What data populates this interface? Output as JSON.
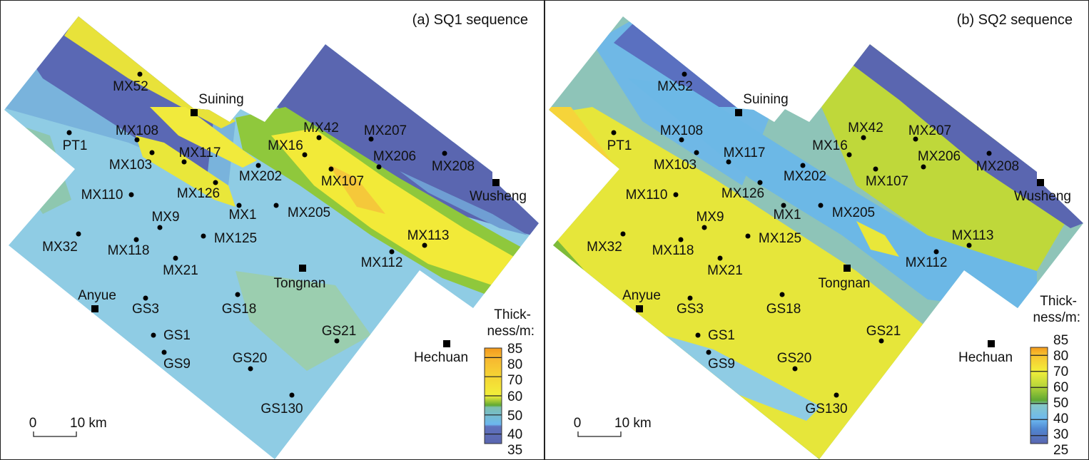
{
  "panels": [
    {
      "title": "(a) SQ1 sequence",
      "legend": {
        "title_line1": "Thick-",
        "title_line2": "ness/m:",
        "ticks": [
          "85",
          "80",
          "70",
          "60",
          "50",
          "40",
          "35"
        ]
      },
      "scale_bar": {
        "start": "0",
        "end": "10 km"
      }
    },
    {
      "title": "(b) SQ2 sequence",
      "legend": {
        "title_line1": "Thick-",
        "title_line2": "ness/m:",
        "ticks": [
          "85",
          "80",
          "70",
          "60",
          "50",
          "40",
          "30",
          "25"
        ]
      },
      "scale_bar": {
        "start": "0",
        "end": "10 km"
      }
    }
  ],
  "towns": [
    "Suining",
    "Wusheng",
    "Tongnan",
    "Anyue",
    "Hechuan"
  ],
  "wells": [
    "MX52",
    "PT1",
    "MX108",
    "MX103",
    "MX117",
    "MX110",
    "MX126",
    "MX202",
    "MX16",
    "MX42",
    "MX207",
    "MX206",
    "MX208",
    "MX107",
    "MX1",
    "MX205",
    "MX9",
    "MX125",
    "MX32",
    "MX118",
    "MX21",
    "MX113",
    "MX112",
    "GS3",
    "GS18",
    "GS1",
    "GS21",
    "GS9",
    "GS20",
    "GS130"
  ],
  "colors": {
    "c85": "#f39a1c",
    "c80": "#f7b630",
    "c70": "#f5e034",
    "c60": "#eef03a",
    "c55": "#9cc63a",
    "c50": "#5fa833",
    "c45": "#86c7c8",
    "c40": "#6cb8f0",
    "c35": "#5a66b0"
  }
}
